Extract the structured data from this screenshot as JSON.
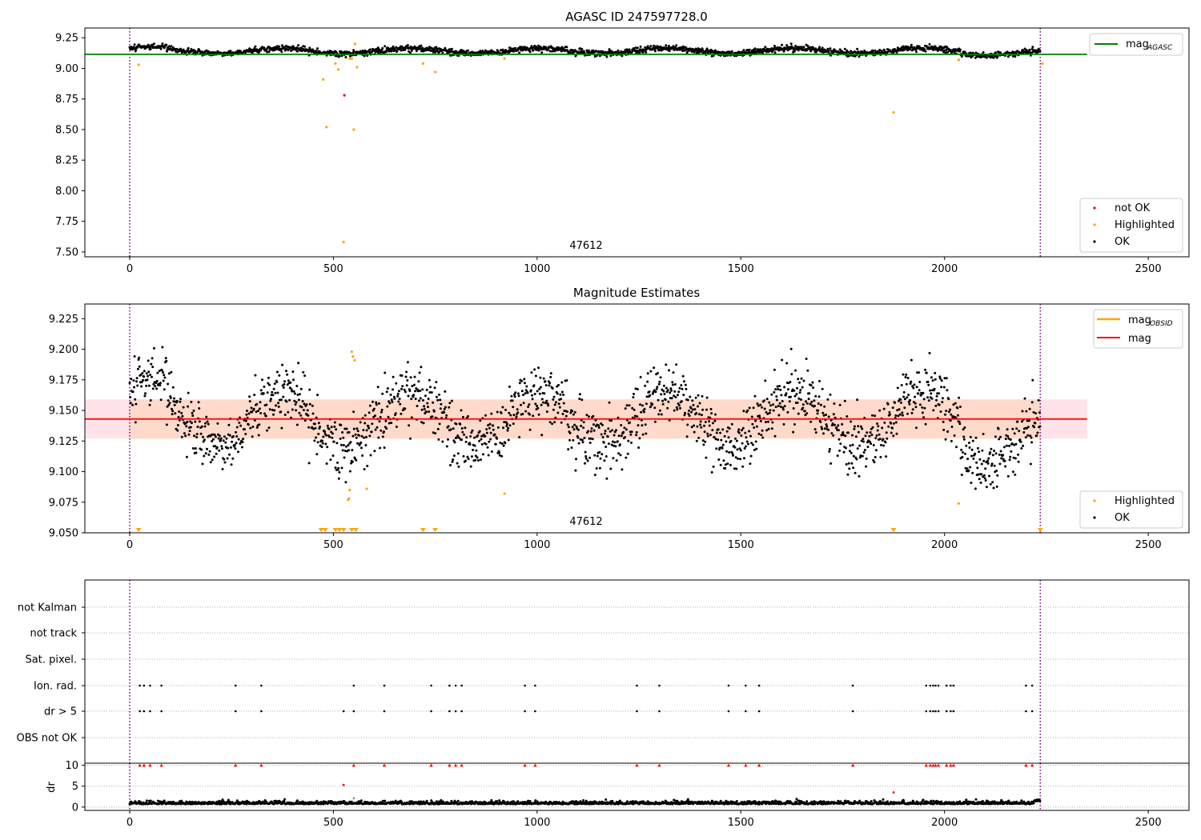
{
  "chart_data": [
    {
      "type": "scatter",
      "title": "AGASC ID 247597728.0",
      "annotation": "47612",
      "xlim": [
        -110,
        2600
      ],
      "ylim": [
        7.46,
        9.33
      ],
      "xticks": [
        0,
        500,
        1000,
        1500,
        2000,
        2500
      ],
      "yticks": [
        7.5,
        7.75,
        8.0,
        8.25,
        8.5,
        8.75,
        9.0,
        9.25
      ],
      "ytick_labels": [
        "7.50",
        "7.75",
        "8.00",
        "8.25",
        "8.50",
        "8.75",
        "9.00",
        "9.25"
      ],
      "vlines": [
        0,
        2235
      ],
      "hline": {
        "y": 9.115,
        "x_end": 2350,
        "color": "#008000"
      },
      "legend_top": {
        "position": "top-right",
        "entries": [
          {
            "label": "mag",
            "sub": "AGASC",
            "color": "#008000"
          }
        ]
      },
      "legend_bottom": {
        "position": "bottom-right",
        "entries": [
          {
            "label": "not OK",
            "color": "#ff0000"
          },
          {
            "label": "Highlighted",
            "color": "#ffa500"
          },
          {
            "label": "OK",
            "color": "#000000"
          }
        ]
      },
      "ok_band": {
        "base": 9.143,
        "amp": 0.022,
        "noise": 0.012,
        "period": 315,
        "phase": 0.4
      },
      "highlighted": [
        [
          22,
          9.03
        ],
        [
          475,
          8.91
        ],
        [
          483,
          8.52
        ],
        [
          505,
          9.04
        ],
        [
          512,
          8.99
        ],
        [
          525,
          7.58
        ],
        [
          540,
          9.08
        ],
        [
          545,
          9.08
        ],
        [
          550,
          8.5
        ],
        [
          553,
          9.2
        ],
        [
          558,
          9.01
        ],
        [
          720,
          9.04
        ],
        [
          750,
          8.97
        ],
        [
          920,
          9.08
        ],
        [
          1875,
          8.64
        ],
        [
          2035,
          9.07
        ],
        [
          2240,
          9.04
        ]
      ],
      "not_ok": [
        [
          527,
          8.78
        ]
      ]
    },
    {
      "type": "scatter",
      "title": "Magnitude Estimates",
      "annotation": "47612",
      "xlim": [
        -110,
        2600
      ],
      "ylim": [
        9.05,
        9.237
      ],
      "xticks": [
        0,
        500,
        1000,
        1500,
        2000,
        2500
      ],
      "yticks": [
        9.05,
        9.075,
        9.1,
        9.125,
        9.15,
        9.175,
        9.2,
        9.225
      ],
      "ytick_labels": [
        "9.050",
        "9.075",
        "9.100",
        "9.125",
        "9.150",
        "9.175",
        "9.200",
        "9.225"
      ],
      "vlines": [
        0,
        2235
      ],
      "mag_line": {
        "y": 9.143,
        "x_end": 2350,
        "color": "#ff0000"
      },
      "outer_band": {
        "y0": 9.127,
        "y1": 9.159,
        "x_end": 2350,
        "color": "#ffc0cb"
      },
      "inner_band": {
        "y0": 9.127,
        "y1": 9.159,
        "x0": 0,
        "x1": 2235,
        "color": "#ffd8c8"
      },
      "legend_top": {
        "position": "top-right",
        "entries": [
          {
            "label": "mag",
            "sub": "OBSID",
            "color": "#ffa500"
          },
          {
            "label": "mag",
            "color": "#ff0000"
          }
        ]
      },
      "legend_bottom": {
        "position": "bottom-right",
        "entries": [
          {
            "label": "Highlighted",
            "color": "#ffa500"
          },
          {
            "label": "OK",
            "color": "#000000"
          }
        ]
      },
      "highlighted": [
        [
          545,
          9.198
        ],
        [
          548,
          9.194
        ],
        [
          552,
          9.191
        ],
        [
          540,
          9.085
        ],
        [
          538,
          9.078
        ],
        [
          536,
          9.077
        ],
        [
          582,
          9.086
        ],
        [
          920,
          9.082
        ],
        [
          2035,
          9.074
        ]
      ],
      "floor_markers": [
        22,
        470,
        480,
        505,
        515,
        525,
        545,
        555,
        720,
        750,
        1875,
        2235
      ]
    },
    {
      "type": "scatter",
      "title": "",
      "xlim": [
        -110,
        2600
      ],
      "categories": [
        "not Kalman",
        "not track",
        "Sat. pixel.",
        "Ion. rad.",
        "dr > 5",
        "OBS not OK"
      ],
      "ion_rad_x": [
        25,
        35,
        50,
        78,
        260,
        323,
        550,
        625,
        740,
        785,
        800,
        815,
        970,
        995,
        1245,
        1300,
        1470,
        1512,
        1545,
        1775,
        1955,
        1965,
        1972,
        1978,
        1985,
        2005,
        2015,
        2022,
        2200,
        2215
      ],
      "dr_gt5_x": [
        25,
        35,
        50,
        78,
        260,
        323,
        525,
        550,
        625,
        740,
        785,
        800,
        815,
        970,
        995,
        1245,
        1300,
        1470,
        1512,
        1545,
        1775,
        1955,
        1965,
        1972,
        1978,
        1985,
        2005,
        2015,
        2022,
        2200,
        2215
      ],
      "vlines": [
        0,
        2235
      ]
    },
    {
      "type": "scatter",
      "title": "",
      "ylabel": "dr",
      "xlim": [
        -110,
        2600
      ],
      "ylim": [
        -0.8,
        10.5
      ],
      "xticks": [
        0,
        500,
        1000,
        1500,
        2000,
        2500
      ],
      "yticks": [
        0,
        5,
        10
      ],
      "ytick_labels": [
        "0",
        "5",
        "10"
      ],
      "vlines": [
        0,
        2235
      ],
      "capped_x": [
        25,
        35,
        50,
        78,
        260,
        323,
        550,
        625,
        740,
        785,
        800,
        815,
        970,
        995,
        1245,
        1300,
        1470,
        1512,
        1545,
        1775,
        1955,
        1965,
        1972,
        1978,
        1985,
        2005,
        2015,
        2022,
        2200,
        2215
      ],
      "red_points": [
        [
          525,
          5.3
        ],
        [
          1875,
          3.5
        ]
      ],
      "gray_points": [
        [
          550,
          2.1
        ]
      ]
    }
  ]
}
